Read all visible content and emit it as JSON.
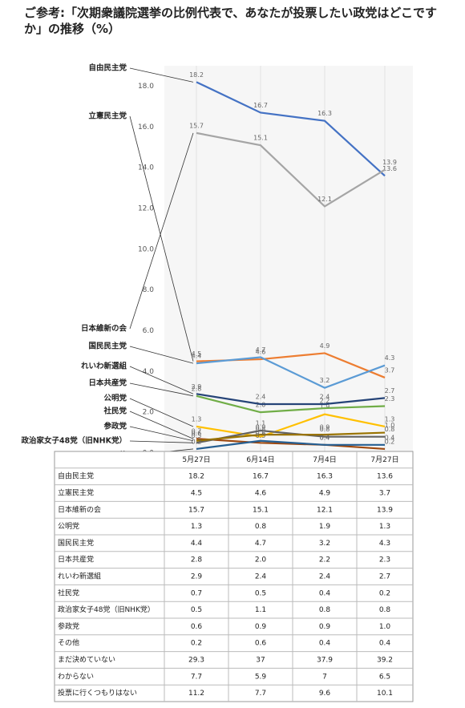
{
  "chart_data": {
    "type": "line",
    "title": "ご参考:「次期衆議院選挙の比例代表で、あなたが投票したい政党はどこですか」の推移（%）",
    "categories": [
      "5月27日",
      "6月14日",
      "7月4日",
      "7月27日"
    ],
    "ylim": [
      0,
      19
    ],
    "yticks": [
      {
        "value": 0,
        "label": "0.0"
      },
      {
        "value": 2,
        "label": "2.0"
      },
      {
        "value": 4,
        "label": "4.0"
      },
      {
        "value": 6,
        "label": "6.0"
      },
      {
        "value": 8,
        "label": "8.0"
      },
      {
        "value": 10,
        "label": "10.0"
      },
      {
        "value": 12,
        "label": "12.0"
      },
      {
        "value": 14,
        "label": "14.0"
      },
      {
        "value": 16,
        "label": "16.0"
      },
      {
        "value": 18,
        "label": "18.0"
      }
    ],
    "series": [
      {
        "name": "自由民主党",
        "color": "#4472c4",
        "values": [
          18.2,
          16.7,
          16.3,
          13.6
        ]
      },
      {
        "name": "立憲民主党",
        "color": "#ed7d31",
        "values": [
          4.5,
          4.6,
          4.9,
          3.7
        ]
      },
      {
        "name": "日本維新の会",
        "color": "#a5a5a5",
        "values": [
          15.7,
          15.1,
          12.1,
          13.9
        ]
      },
      {
        "name": "公明党",
        "color": "#ffc000",
        "values": [
          1.3,
          0.8,
          1.9,
          1.3
        ]
      },
      {
        "name": "国民民主党",
        "color": "#5b9bd5",
        "values": [
          4.4,
          4.7,
          3.2,
          4.3
        ]
      },
      {
        "name": "日本共産党",
        "color": "#70ad47",
        "values": [
          2.8,
          2.0,
          2.2,
          2.3
        ],
        "value_labels": [
          "2.8",
          "2.0",
          "2.2",
          "2.3"
        ]
      },
      {
        "name": "れいわ新選組",
        "color": "#264478",
        "values": [
          2.9,
          2.4,
          2.4,
          2.7
        ]
      },
      {
        "name": "社民党",
        "color": "#9e480e",
        "values": [
          0.7,
          0.5,
          0.4,
          0.2
        ]
      },
      {
        "name": "政治家女子48党（旧NHK党）",
        "color": "#636363",
        "values": [
          0.5,
          1.1,
          0.8,
          0.8
        ]
      },
      {
        "name": "参政党",
        "color": "#997300",
        "values": [
          0.6,
          0.9,
          0.9,
          1.0
        ],
        "value_labels": [
          "0.6",
          "0.9",
          "0.9",
          "1.0"
        ]
      },
      {
        "name": "その他",
        "color": "#255e91",
        "values": [
          0.2,
          0.6,
          0.4,
          0.4
        ]
      }
    ],
    "table_extra_rows": [
      {
        "name": "まだ決めていない",
        "values": [
          29.3,
          37,
          37.9,
          39.2
        ]
      },
      {
        "name": "わからない",
        "values": [
          7.7,
          5.9,
          7,
          6.5
        ]
      },
      {
        "name": "投票に行くつもりはない",
        "values": [
          11.2,
          7.7,
          9.6,
          10.1
        ]
      }
    ]
  }
}
